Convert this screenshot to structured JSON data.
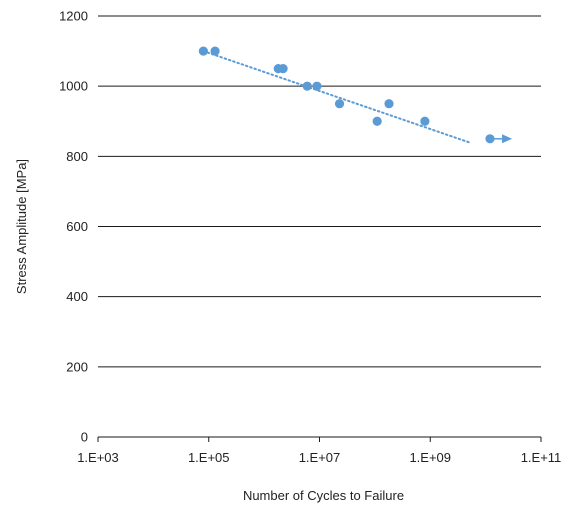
{
  "chart_data": {
    "type": "scatter",
    "title": "",
    "xlabel": "Number of Cycles to Failure",
    "ylabel": "Stress Amplitude [MPa]",
    "x_scale": "log",
    "xlim": [
      1000,
      100000000000
    ],
    "ylim": [
      0,
      1200
    ],
    "x_ticks": [
      1000,
      100000,
      10000000,
      1000000000,
      100000000000
    ],
    "x_tick_labels": [
      "1.E+03",
      "1.E+05",
      "1.E+07",
      "1.E+09",
      "1.E+11"
    ],
    "y_ticks": [
      0,
      200,
      400,
      600,
      800,
      1000,
      1200
    ],
    "y_tick_labels": [
      "0",
      "200",
      "400",
      "600",
      "800",
      "1000",
      "1200"
    ],
    "grid": "horizontal",
    "legend": "none",
    "series": [
      {
        "marker": "circle",
        "color": "#5b9bd5",
        "points": [
          {
            "x": 80000,
            "y": 1100
          },
          {
            "x": 130000,
            "y": 1100
          },
          {
            "x": 1800000,
            "y": 1050
          },
          {
            "x": 2200000,
            "y": 1050
          },
          {
            "x": 6000000,
            "y": 1000
          },
          {
            "x": 9000000,
            "y": 1000
          },
          {
            "x": 23000000,
            "y": 950
          },
          {
            "x": 110000000,
            "y": 900
          },
          {
            "x": 180000000,
            "y": 950
          },
          {
            "x": 800000000,
            "y": 900
          },
          {
            "x": 12000000000,
            "y": 850
          }
        ],
        "runout": {
          "x": 12000000000,
          "y": 850,
          "arrow_to_x": 30000000000
        }
      }
    ],
    "trendline": {
      "style": "dotted",
      "color": "#5b9bd5",
      "from": {
        "x": 80000,
        "y": 1100
      },
      "to": {
        "x": 5000000000,
        "y": 840
      }
    }
  }
}
